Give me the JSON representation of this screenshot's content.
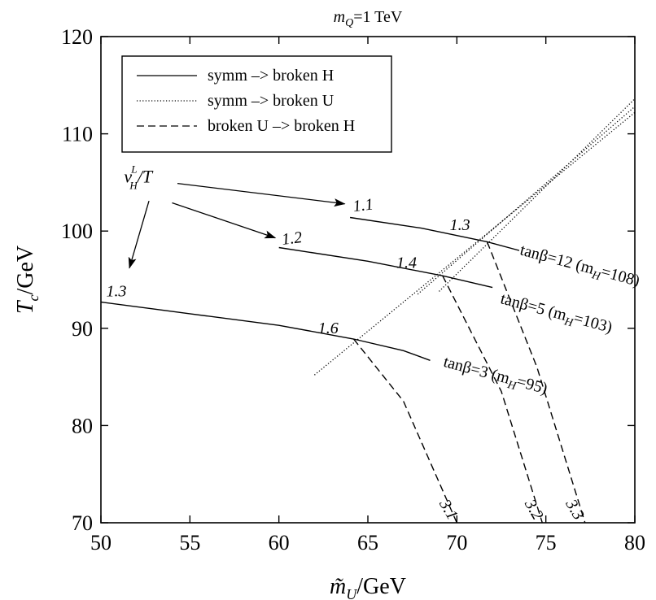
{
  "chart_data": {
    "type": "line",
    "title": "m_Q=1 TeV",
    "title_parts": {
      "var": "m",
      "sub": "Q",
      "rest": "=1 TeV"
    },
    "xlabel": "m̃_U/GeV",
    "xlabel_parts": {
      "var": "m̃",
      "sub": "U",
      "rest": "/GeV"
    },
    "ylabel": "T_c/GeV",
    "ylabel_parts": {
      "var": "T",
      "sub": "c",
      "rest": "/GeV"
    },
    "xlim": [
      50,
      80
    ],
    "ylim": [
      70,
      120
    ],
    "x_ticks": [
      50,
      55,
      60,
      65,
      70,
      75,
      80
    ],
    "y_ticks": [
      70,
      80,
      90,
      100,
      110,
      120
    ],
    "grid": false,
    "legend": {
      "placement": "top-left",
      "entries": [
        {
          "label": "symm –> broken H",
          "style": "solid"
        },
        {
          "label": "symm –> broken U",
          "style": "dotted"
        },
        {
          "label": "broken U –> broken H",
          "style": "dashed"
        }
      ]
    },
    "series": [
      {
        "name": "symm –> broken H",
        "style": "solid",
        "group": "tanβ=3",
        "points": [
          [
            50,
            92.7
          ],
          [
            55,
            91.5
          ],
          [
            60,
            90.3
          ],
          [
            64.2,
            88.9
          ],
          [
            67,
            87.7
          ],
          [
            68.5,
            86.7
          ]
        ]
      },
      {
        "name": "symm –> broken H",
        "style": "solid",
        "group": "tanβ=5",
        "points": [
          [
            60,
            98.3
          ],
          [
            65,
            96.9
          ],
          [
            69.2,
            95.4
          ],
          [
            72,
            94.2
          ]
        ]
      },
      {
        "name": "symm –> broken H",
        "style": "solid",
        "group": "tanβ=12",
        "points": [
          [
            64,
            101.4
          ],
          [
            68,
            100.3
          ],
          [
            71.7,
            98.9
          ],
          [
            73.5,
            98.0
          ]
        ]
      },
      {
        "name": "symm –> broken U",
        "style": "dotted",
        "group": "tanβ=3",
        "points": [
          [
            62,
            85.2
          ],
          [
            80,
            112.2
          ]
        ]
      },
      {
        "name": "symm –> broken U",
        "style": "dotted",
        "group": "tanβ=5",
        "points": [
          [
            67.8,
            93.5
          ],
          [
            80,
            112.8
          ]
        ]
      },
      {
        "name": "symm –> broken U",
        "style": "dotted",
        "group": "tanβ=12",
        "points": [
          [
            69.0,
            93.8
          ],
          [
            80,
            113.6
          ]
        ]
      },
      {
        "name": "broken U –> broken H",
        "style": "dashed",
        "group": "tanβ=3",
        "points": [
          [
            64.2,
            88.9
          ],
          [
            67,
            82.5
          ],
          [
            70,
            70
          ]
        ]
      },
      {
        "name": "broken U –> broken H",
        "style": "dashed",
        "group": "tanβ=5",
        "points": [
          [
            69.2,
            95.4
          ],
          [
            72.5,
            83.5
          ],
          [
            74.8,
            70
          ]
        ]
      },
      {
        "name": "broken U –> broken H",
        "style": "dashed",
        "group": "tanβ=12",
        "points": [
          [
            71.7,
            98.9
          ],
          [
            74.5,
            86.0
          ],
          [
            77.2,
            70
          ]
        ]
      }
    ],
    "curve_labels": [
      {
        "text": "tanβ=12 (m",
        "sub": "H",
        "rest": "=108)",
        "x": 73.5,
        "y": 97.6,
        "angle": 15
      },
      {
        "text": "tanβ=5 (m",
        "sub": "H",
        "rest": "=103)",
        "x": 72.4,
        "y": 92.6,
        "angle": 15
      },
      {
        "text": "tanβ=3 (m",
        "sub": "H",
        "rest": "=95)",
        "x": 69.2,
        "y": 86.1,
        "angle": 15
      }
    ],
    "annotations": [
      {
        "text": "1.1",
        "x": 64.2,
        "y": 102.0,
        "angle": -7
      },
      {
        "text": "1.3",
        "x": 69.6,
        "y": 100.1,
        "angle": 0
      },
      {
        "text": "1.2",
        "x": 60.2,
        "y": 98.6,
        "angle": -7
      },
      {
        "text": "1.4",
        "x": 66.6,
        "y": 96.2,
        "angle": 0
      },
      {
        "text": "1.3",
        "x": 50.3,
        "y": 93.3,
        "angle": 0
      },
      {
        "text": "1.6",
        "x": 62.2,
        "y": 89.5,
        "angle": 0
      },
      {
        "text": "3.1",
        "x": 69.0,
        "y": 72.0,
        "angle": 60
      },
      {
        "text": "3.2",
        "x": 73.8,
        "y": 72.0,
        "angle": 60
      },
      {
        "text": "3.3",
        "x": 76.1,
        "y": 72.0,
        "angle": 60
      }
    ],
    "ratio_label": {
      "v": "v",
      "sup": "L",
      "sub": "H",
      "rest": "/T",
      "x": 51.3,
      "y": 105.0
    },
    "arrows": [
      {
        "from": [
          54.3,
          104.9
        ],
        "to": [
          63.7,
          102.8
        ]
      },
      {
        "from": [
          54.0,
          102.9
        ],
        "to": [
          59.8,
          99.3
        ]
      },
      {
        "from": [
          52.7,
          103.1
        ],
        "to": [
          51.6,
          96.2
        ]
      }
    ]
  }
}
